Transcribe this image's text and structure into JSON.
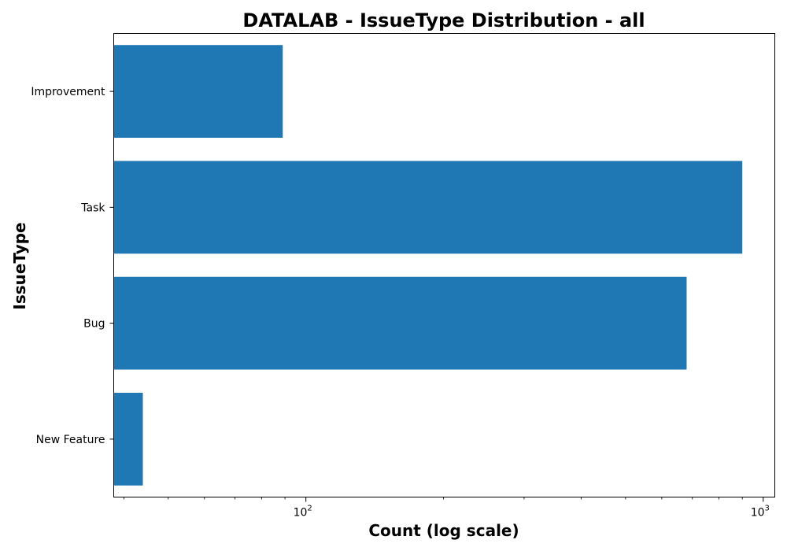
{
  "chart_data": {
    "type": "bar",
    "orientation": "horizontal",
    "title": "DATALAB - IssueType Distribution - all",
    "xlabel": "Count (log scale)",
    "ylabel": "IssueType",
    "x_scale": "log",
    "xlim": [
      38,
      1060
    ],
    "categories": [
      "Improvement",
      "Task",
      "Bug",
      "New Feature"
    ],
    "values": [
      89,
      900,
      680,
      44
    ],
    "x_major_ticks": [
      {
        "value": 100,
        "base": "10",
        "exp": "2"
      },
      {
        "value": 1000,
        "base": "10",
        "exp": "3"
      }
    ],
    "x_minor_ticks": [
      40,
      50,
      60,
      70,
      80,
      90,
      200,
      300,
      400,
      500,
      600,
      700,
      800,
      900
    ],
    "bar_color": "#1f77b4",
    "grid": false,
    "legend": "none"
  }
}
